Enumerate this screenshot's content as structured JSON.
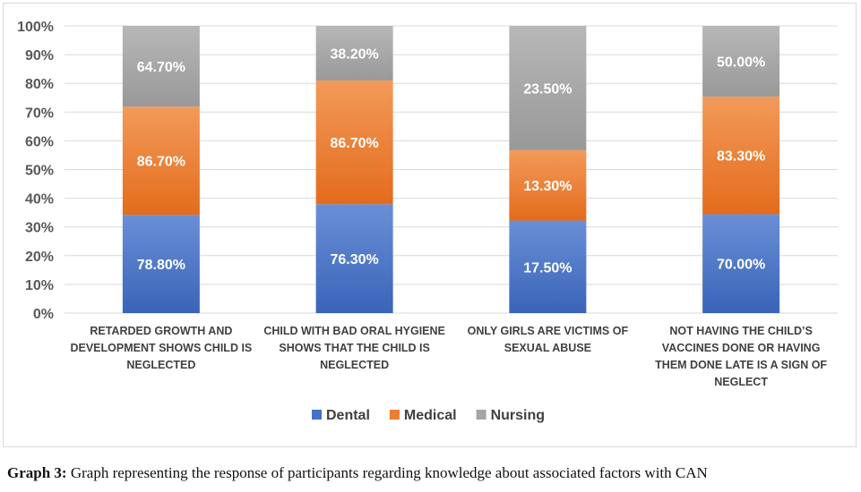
{
  "chart_data": {
    "type": "bar",
    "stacked": "percent",
    "categories": [
      "RETARDED GROWTH AND DEVELOPMENT SHOWS CHILD IS NEGLECTED",
      "CHILD WITH BAD ORAL HYGIENE SHOWS THAT THE CHILD IS NEGLECTED",
      "ONLY GIRLS ARE VICTIMS OF SEXUAL ABUSE",
      "NOT HAVING THE CHILD'S VACCINES DONE OR HAVING THEM DONE LATE IS A SIGN OF NEGLECT"
    ],
    "category_lines": [
      [
        "RETARDED GROWTH AND",
        "DEVELOPMENT SHOWS CHILD IS",
        "NEGLECTED"
      ],
      [
        "CHILD WITH BAD ORAL HYGIENE",
        "SHOWS THAT THE CHILD IS",
        "NEGLECTED"
      ],
      [
        "ONLY GIRLS ARE VICTIMS OF",
        "SEXUAL ABUSE"
      ],
      [
        "NOT HAVING THE CHILD’S",
        "VACCINES DONE OR HAVING",
        "THEM DONE LATE IS A SIGN OF",
        "NEGLECT"
      ]
    ],
    "series": [
      {
        "name": "Dental",
        "values": [
          78.8,
          76.3,
          17.5,
          70.0
        ],
        "labels": [
          "78.80%",
          "76.30%",
          "17.50%",
          "70.00%"
        ],
        "color": "#4472c4"
      },
      {
        "name": "Medical",
        "values": [
          86.7,
          86.7,
          13.3,
          83.3
        ],
        "labels": [
          "86.70%",
          "86.70%",
          "13.30%",
          "83.30%"
        ],
        "color": "#ed7d31"
      },
      {
        "name": "Nursing",
        "values": [
          64.7,
          38.2,
          23.5,
          50.0
        ],
        "labels": [
          "64.70%",
          "38.20%",
          "23.50%",
          "50.00%"
        ],
        "color": "#a5a5a5"
      }
    ],
    "y_ticks": [
      "0%",
      "10%",
      "20%",
      "30%",
      "40%",
      "50%",
      "60%",
      "70%",
      "80%",
      "90%",
      "100%"
    ],
    "ylim": [
      0,
      100
    ],
    "grid": true,
    "legend": "bottom"
  },
  "caption": {
    "label": "Graph 3:",
    "text": " Graph representing the response of participants regarding knowledge about associated factors with CAN"
  }
}
